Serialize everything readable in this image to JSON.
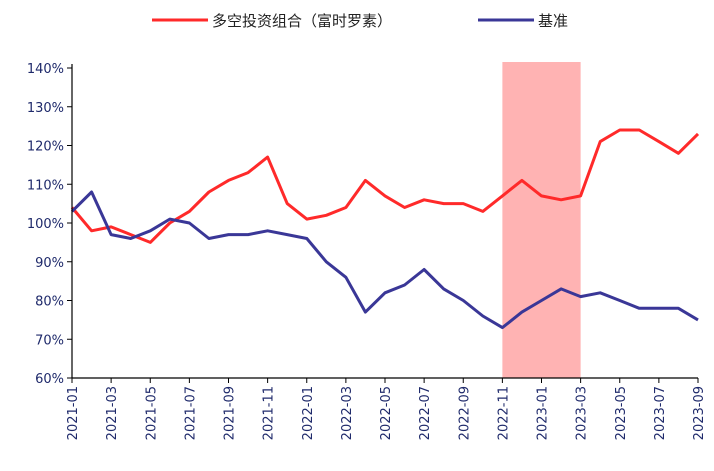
{
  "chart_data": {
    "type": "line",
    "title": "",
    "xlabel": "",
    "ylabel": "",
    "x_ticks": [
      "2021-01",
      "2021-03",
      "2021-05",
      "2021-07",
      "2021-09",
      "2021-11",
      "2022-01",
      "2022-03",
      "2022-05",
      "2022-07",
      "2022-09",
      "2022-11",
      "2023-01",
      "2023-03",
      "2023-05",
      "2023-07",
      "2023-09"
    ],
    "y_ticks": [
      "60%",
      "70%",
      "80%",
      "90%",
      "100%",
      "110%",
      "120%",
      "130%",
      "140%"
    ],
    "ylim": [
      60,
      140
    ],
    "grid": false,
    "legend_position": "top",
    "highlight": {
      "from": "2022-11",
      "to": "2023-03",
      "color": "#ffb3b3"
    },
    "series": [
      {
        "name": "多空投资组合（富时罗素）",
        "color": "#ff2a2a",
        "x": [
          "2021-01",
          "2021-02",
          "2021-03",
          "2021-04",
          "2021-05",
          "2021-06",
          "2021-07",
          "2021-08",
          "2021-09",
          "2021-10",
          "2021-11",
          "2021-12",
          "2022-01",
          "2022-02",
          "2022-03",
          "2022-04",
          "2022-05",
          "2022-06",
          "2022-07",
          "2022-08",
          "2022-09",
          "2022-10",
          "2022-11",
          "2022-12",
          "2023-01",
          "2023-02",
          "2023-03",
          "2023-04",
          "2023-05",
          "2023-06",
          "2023-07",
          "2023-08",
          "2023-09"
        ],
        "values": [
          104,
          98,
          99,
          97,
          95,
          100,
          103,
          108,
          111,
          113,
          117,
          105,
          101,
          102,
          104,
          111,
          107,
          104,
          106,
          105,
          105,
          103,
          107,
          111,
          107,
          106,
          107,
          121,
          124,
          124,
          121,
          118,
          123
        ]
      },
      {
        "name": "基准",
        "color": "#3a3797",
        "x": [
          "2021-01",
          "2021-02",
          "2021-03",
          "2021-04",
          "2021-05",
          "2021-06",
          "2021-07",
          "2021-08",
          "2021-09",
          "2021-10",
          "2021-11",
          "2021-12",
          "2022-01",
          "2022-02",
          "2022-03",
          "2022-04",
          "2022-05",
          "2022-06",
          "2022-07",
          "2022-08",
          "2022-09",
          "2022-10",
          "2022-11",
          "2022-12",
          "2023-01",
          "2023-02",
          "2023-03",
          "2023-04",
          "2023-05",
          "2023-06",
          "2023-07",
          "2023-08",
          "2023-09"
        ],
        "values": [
          103,
          108,
          97,
          96,
          98,
          101,
          100,
          96,
          97,
          97,
          98,
          97,
          96,
          90,
          86,
          77,
          82,
          84,
          88,
          83,
          80,
          76,
          73,
          77,
          80,
          83,
          81,
          82,
          80,
          78,
          78,
          78,
          75
        ]
      }
    ]
  }
}
